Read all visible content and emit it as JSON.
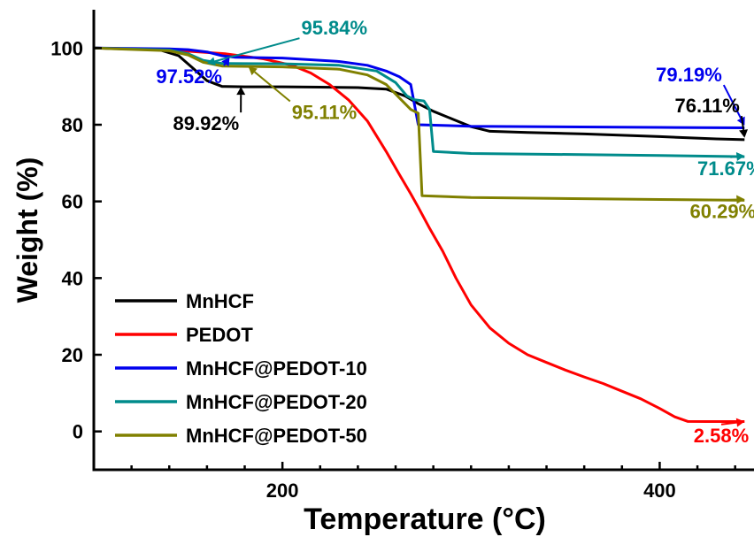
{
  "chart_data": {
    "type": "line",
    "xlabel": "Temperature (°C)",
    "ylabel": "Weight (%)",
    "xlim": [
      100,
      450
    ],
    "ylim": [
      -10,
      110
    ],
    "xticks": [
      200,
      400
    ],
    "yticks": [
      0,
      20,
      40,
      60,
      80,
      100
    ],
    "grid": false,
    "legend_position": "bottom-left",
    "series": [
      {
        "name": "MnHCF",
        "color": "#000000",
        "points": [
          [
            100,
            100
          ],
          [
            120,
            99.8
          ],
          [
            135,
            99.5
          ],
          [
            145,
            98
          ],
          [
            152,
            95
          ],
          [
            160,
            91.5
          ],
          [
            168,
            90
          ],
          [
            180,
            89.9
          ],
          [
            200,
            89.9
          ],
          [
            220,
            89.8
          ],
          [
            240,
            89.7
          ],
          [
            255,
            89.3
          ],
          [
            265,
            87.5
          ],
          [
            272,
            85.5
          ],
          [
            280,
            83.5
          ],
          [
            290,
            81.5
          ],
          [
            300,
            79.5
          ],
          [
            310,
            78.3
          ],
          [
            330,
            78
          ],
          [
            360,
            77.6
          ],
          [
            400,
            76.9
          ],
          [
            430,
            76.3
          ],
          [
            445,
            76.1
          ]
        ]
      },
      {
        "name": "PEDOT",
        "color": "#ff0000",
        "points": [
          [
            100,
            100
          ],
          [
            140,
            99.5
          ],
          [
            170,
            98.5
          ],
          [
            190,
            97.2
          ],
          [
            205,
            95.5
          ],
          [
            215,
            93.5
          ],
          [
            225,
            90.5
          ],
          [
            235,
            86.5
          ],
          [
            245,
            81
          ],
          [
            255,
            73
          ],
          [
            262,
            67
          ],
          [
            268,
            62
          ],
          [
            272,
            58.5
          ],
          [
            278,
            53
          ],
          [
            285,
            47
          ],
          [
            292,
            40
          ],
          [
            300,
            33
          ],
          [
            310,
            27
          ],
          [
            320,
            23
          ],
          [
            330,
            20
          ],
          [
            340,
            18
          ],
          [
            350,
            16
          ],
          [
            360,
            14.2
          ],
          [
            370,
            12.5
          ],
          [
            380,
            10.5
          ],
          [
            390,
            8.5
          ],
          [
            400,
            6
          ],
          [
            408,
            3.8
          ],
          [
            415,
            2.6
          ],
          [
            425,
            2.58
          ],
          [
            445,
            2.58
          ]
        ]
      },
      {
        "name": "MnHCF@PEDOT-10",
        "color": "#0000ee",
        "points": [
          [
            100,
            100
          ],
          [
            140,
            99.8
          ],
          [
            150,
            99.6
          ],
          [
            160,
            99
          ],
          [
            168,
            98
          ],
          [
            175,
            97.6
          ],
          [
            200,
            97.4
          ],
          [
            230,
            96.5
          ],
          [
            245,
            95.5
          ],
          [
            255,
            94
          ],
          [
            262,
            92.5
          ],
          [
            268,
            90.5
          ],
          [
            272,
            80
          ],
          [
            300,
            79.6
          ],
          [
            400,
            79.3
          ],
          [
            445,
            79.19
          ]
        ]
      },
      {
        "name": "MnHCF@PEDOT-20",
        "color": "#008b8b",
        "points": [
          [
            100,
            100
          ],
          [
            140,
            99.5
          ],
          [
            150,
            98.5
          ],
          [
            158,
            96.8
          ],
          [
            168,
            96
          ],
          [
            200,
            95.9
          ],
          [
            230,
            95.5
          ],
          [
            250,
            94
          ],
          [
            260,
            91
          ],
          [
            266,
            87.5
          ],
          [
            270,
            86.5
          ],
          [
            275,
            86.2
          ],
          [
            278,
            84
          ],
          [
            280,
            73
          ],
          [
            300,
            72.5
          ],
          [
            400,
            72
          ],
          [
            445,
            71.67
          ]
        ]
      },
      {
        "name": "MnHCF@PEDOT-50",
        "color": "#808000",
        "points": [
          [
            100,
            100
          ],
          [
            140,
            99.3
          ],
          [
            150,
            98.2
          ],
          [
            158,
            96.3
          ],
          [
            168,
            95.3
          ],
          [
            200,
            95.1
          ],
          [
            230,
            94.5
          ],
          [
            245,
            93
          ],
          [
            255,
            90.5
          ],
          [
            262,
            87
          ],
          [
            268,
            84
          ],
          [
            272,
            83
          ],
          [
            274,
            61.5
          ],
          [
            300,
            61
          ],
          [
            400,
            60.5
          ],
          [
            445,
            60.29
          ]
        ]
      }
    ],
    "annotations": [
      {
        "text": "95.84%",
        "color": "#008b8b",
        "x": 210,
        "y": 103.5,
        "ax": 160,
        "ay": 96
      },
      {
        "text": "97.52%",
        "color": "#0000ee",
        "x": 133,
        "y": 90.8,
        "ax": 172,
        "ay": 97.6
      },
      {
        "text": "89.92%",
        "color": "#000000",
        "x": 142,
        "y": 78.6,
        "ax": 178,
        "ay": 89.9
      },
      {
        "text": "95.11%",
        "color": "#808000",
        "x": 205,
        "y": 81.5,
        "ax": 182,
        "ay": 95.1
      },
      {
        "text": "79.19%",
        "color": "#0000ee",
        "x": 398,
        "y": 91.3,
        "ax": 445,
        "ay": 79.8
      },
      {
        "text": "76.11%",
        "color": "#000000",
        "x": 408,
        "y": 83.2,
        "ax": 445,
        "ay": 76.6
      },
      {
        "text": "71.67%",
        "color": "#008b8b",
        "x": 420,
        "y": 66.9,
        "ax": 445,
        "ay": 71.9
      },
      {
        "text": "60.29%",
        "color": "#808000",
        "x": 416,
        "y": 55.7,
        "ax": 445,
        "ay": 60.6
      },
      {
        "text": "2.58%",
        "color": "#ff0000",
        "x": 418,
        "y": -2.8,
        "ax": 445,
        "ay": 2.58
      }
    ]
  }
}
